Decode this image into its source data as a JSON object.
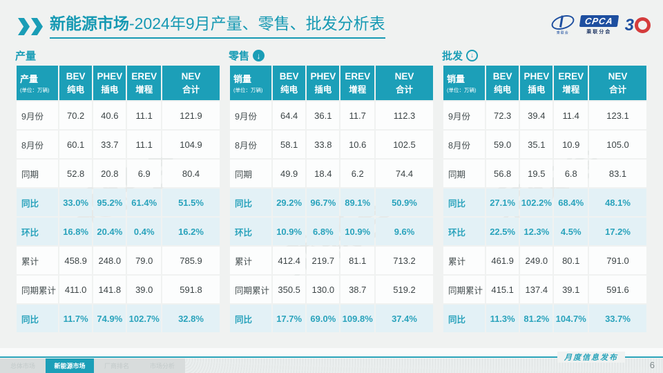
{
  "page": {
    "title_bold": "新能源市场",
    "title_rest": "-2024年9月产量、零售、批发分析表",
    "footer_label": "月度信息发布",
    "page_number": "6",
    "watermark": "乘联会"
  },
  "logos": {
    "cpca_text": "CPCA",
    "cpca_sub": "乘联分会",
    "ellipse_sub": "乘联会",
    "anniversary": "3"
  },
  "colors": {
    "teal": "#1A9DB6",
    "header_bg": "#1C9FB8",
    "highlight_row_bg": "#E3F1F6",
    "highlight_text": "#2AA3BC",
    "page_bg": "#F0F2F1",
    "logo_blue": "#1E4FA0",
    "logo_red": "#D43C3C"
  },
  "nav": {
    "tabs": [
      {
        "label": "总体市场",
        "active": false
      },
      {
        "label": "新能源市场",
        "active": true
      },
      {
        "label": "厂商排名",
        "active": false
      },
      {
        "label": "市场分析",
        "active": false
      }
    ]
  },
  "tables": [
    {
      "section": "产量",
      "icon": "none",
      "corner_title": "产量",
      "unit": "(单位：万辆)",
      "columns": [
        {
          "line1": "BEV",
          "line2": "纯电"
        },
        {
          "line1": "PHEV",
          "line2": "插电"
        },
        {
          "line1": "EREV",
          "line2": "增程"
        },
        {
          "line1": "NEV",
          "line2": "合计"
        }
      ],
      "rows": [
        {
          "label": "9月份",
          "values": [
            "70.2",
            "40.6",
            "11.1",
            "121.9"
          ],
          "highlight": false
        },
        {
          "label": "8月份",
          "values": [
            "60.1",
            "33.7",
            "11.1",
            "104.9"
          ],
          "highlight": false
        },
        {
          "label": "同期",
          "values": [
            "52.8",
            "20.8",
            "6.9",
            "80.4"
          ],
          "highlight": false
        },
        {
          "label": "同比",
          "values": [
            "33.0%",
            "95.2%",
            "61.4%",
            "51.5%"
          ],
          "highlight": true
        },
        {
          "label": "环比",
          "values": [
            "16.8%",
            "20.4%",
            "0.4%",
            "16.2%"
          ],
          "highlight": true
        },
        {
          "label": "累计",
          "values": [
            "458.9",
            "248.0",
            "79.0",
            "785.9"
          ],
          "highlight": false
        },
        {
          "label": "同期累计",
          "values": [
            "411.0",
            "141.8",
            "39.0",
            "591.8"
          ],
          "highlight": false
        },
        {
          "label": "同比",
          "values": [
            "11.7%",
            "74.9%",
            "102.7%",
            "32.8%"
          ],
          "highlight": true
        }
      ]
    },
    {
      "section": "零售",
      "icon": "down-arrow-filled",
      "corner_title": "销量",
      "unit": "(单位：万辆)",
      "columns": [
        {
          "line1": "BEV",
          "line2": "纯电"
        },
        {
          "line1": "PHEV",
          "line2": "插电"
        },
        {
          "line1": "EREV",
          "line2": "增程"
        },
        {
          "line1": "NEV",
          "line2": "合计"
        }
      ],
      "rows": [
        {
          "label": "9月份",
          "values": [
            "64.4",
            "36.1",
            "11.7",
            "112.3"
          ],
          "highlight": false
        },
        {
          "label": "8月份",
          "values": [
            "58.1",
            "33.8",
            "10.6",
            "102.5"
          ],
          "highlight": false
        },
        {
          "label": "同期",
          "values": [
            "49.9",
            "18.4",
            "6.2",
            "74.4"
          ],
          "highlight": false
        },
        {
          "label": "同比",
          "values": [
            "29.2%",
            "96.7%",
            "89.1%",
            "50.9%"
          ],
          "highlight": true
        },
        {
          "label": "环比",
          "values": [
            "10.9%",
            "6.8%",
            "10.9%",
            "9.6%"
          ],
          "highlight": true
        },
        {
          "label": "累计",
          "values": [
            "412.4",
            "219.7",
            "81.1",
            "713.2"
          ],
          "highlight": false
        },
        {
          "label": "同期累计",
          "values": [
            "350.5",
            "130.0",
            "38.7",
            "519.2"
          ],
          "highlight": false
        },
        {
          "label": "同比",
          "values": [
            "17.7%",
            "69.0%",
            "109.8%",
            "37.4%"
          ],
          "highlight": true
        }
      ]
    },
    {
      "section": "批发",
      "icon": "down-arrow-outline",
      "corner_title": "销量",
      "unit": "(单位：万辆)",
      "columns": [
        {
          "line1": "BEV",
          "line2": "纯电"
        },
        {
          "line1": "PHEV",
          "line2": "插电"
        },
        {
          "line1": "EREV",
          "line2": "增程"
        },
        {
          "line1": "NEV",
          "line2": "合计"
        }
      ],
      "rows": [
        {
          "label": "9月份",
          "values": [
            "72.3",
            "39.4",
            "11.4",
            "123.1"
          ],
          "highlight": false
        },
        {
          "label": "8月份",
          "values": [
            "59.0",
            "35.1",
            "10.9",
            "105.0"
          ],
          "highlight": false
        },
        {
          "label": "同期",
          "values": [
            "56.8",
            "19.5",
            "6.8",
            "83.1"
          ],
          "highlight": false
        },
        {
          "label": "同比",
          "values": [
            "27.1%",
            "102.2%",
            "68.4%",
            "48.1%"
          ],
          "highlight": true
        },
        {
          "label": "环比",
          "values": [
            "22.5%",
            "12.3%",
            "4.5%",
            "17.2%"
          ],
          "highlight": true
        },
        {
          "label": "累计",
          "values": [
            "461.9",
            "249.0",
            "80.1",
            "791.0"
          ],
          "highlight": false
        },
        {
          "label": "同期累计",
          "values": [
            "415.1",
            "137.4",
            "39.1",
            "591.6"
          ],
          "highlight": false
        },
        {
          "label": "同比",
          "values": [
            "11.3%",
            "81.2%",
            "104.7%",
            "33.7%"
          ],
          "highlight": true
        }
      ]
    }
  ]
}
